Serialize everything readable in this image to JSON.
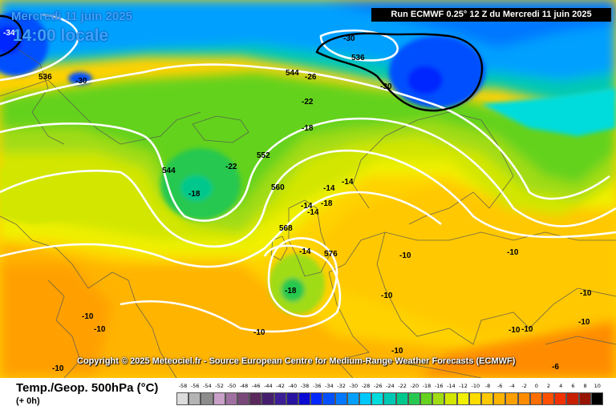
{
  "header": {
    "date": "Mercredi 11 juin 2025",
    "time": "14:00 locale",
    "run": "Run ECMWF 0.25° 12 Z du Mercredi 11 juin 2025"
  },
  "copyright": "Copyright © 2025 Meteociel.fr - Source European Centre for Medium-Range Weather Forecasts (ECMWF)",
  "footer": {
    "parameter": "Temp./Geop. 500hPa (°C)",
    "step": "(+ 0h)"
  },
  "legend": {
    "values": [
      "-58",
      "-56",
      "-54",
      "-52",
      "-50",
      "-48",
      "-46",
      "-44",
      "-42",
      "-40",
      "-38",
      "-36",
      "-34",
      "-32",
      "-30",
      "-28",
      "-26",
      "-24",
      "-22",
      "-20",
      "-18",
      "-16",
      "-14",
      "-12",
      "-10",
      "-8",
      "-6",
      "-4",
      "-2",
      "0",
      "2",
      "4",
      "6",
      "8",
      "10"
    ],
    "colors": [
      "#dcdcdc",
      "#b4b4b4",
      "#8c8c8c",
      "#c8a0c8",
      "#a070a0",
      "#784878",
      "#5a285a",
      "#461e6e",
      "#3c1e96",
      "#2814a0",
      "#0a0ad2",
      "#0028ff",
      "#0050ff",
      "#0078ff",
      "#00a0ff",
      "#00c8ff",
      "#00dcdc",
      "#00c8b4",
      "#00c88c",
      "#28c850",
      "#64d21e",
      "#a0dc14",
      "#d2e600",
      "#f0f000",
      "#ffdc00",
      "#ffc800",
      "#ffb400",
      "#ffa000",
      "#ff8c00",
      "#ff6e00",
      "#ff5000",
      "#f03200",
      "#c81e00",
      "#961400",
      "#000000"
    ]
  },
  "map": {
    "geopotential_labels": [
      "536",
      "536",
      "544",
      "544",
      "552",
      "560",
      "568",
      "576"
    ],
    "temperature_labels": [
      "-34",
      "-30",
      "-30",
      "-30",
      "-26",
      "-22",
      "-22",
      "-18",
      "-18",
      "-18",
      "-18",
      "-14",
      "-14",
      "-14",
      "-14",
      "-14",
      "-10",
      "-10",
      "-10",
      "-10",
      "-10",
      "-10",
      "-10",
      "-10",
      "-10",
      "-10",
      "-10",
      "-10",
      "-6"
    ]
  }
}
